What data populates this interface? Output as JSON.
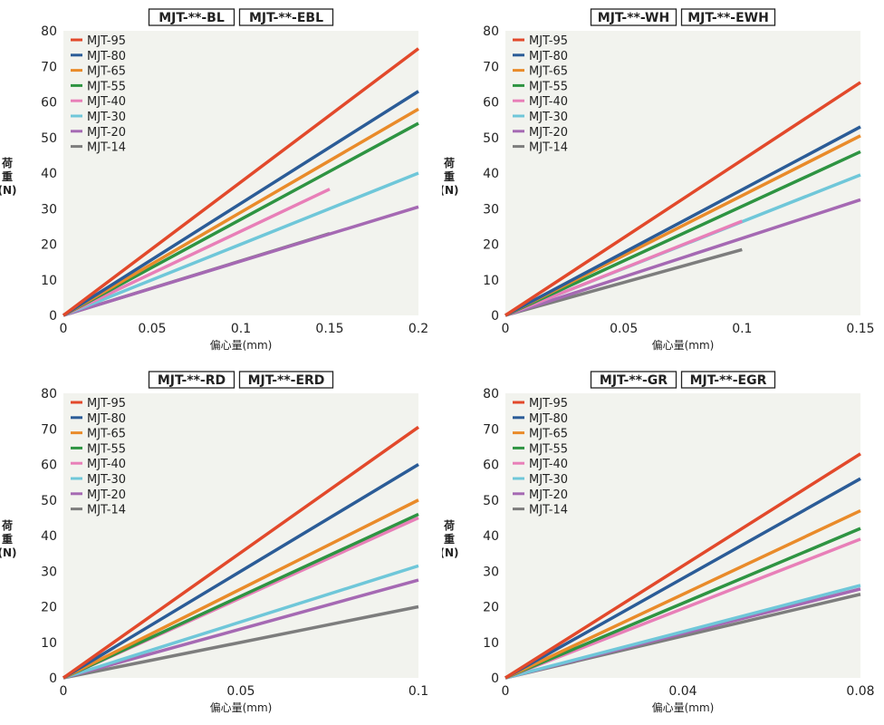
{
  "chart_data": [
    {
      "type": "line",
      "badges": [
        "MJT-**-BL",
        "MJT-**-EBL"
      ],
      "xlabel": "偏心量(mm)",
      "ylabel": [
        "荷",
        "重",
        "(N)"
      ],
      "xlim": [
        0,
        0.2
      ],
      "ylim": [
        0,
        80
      ],
      "xticks": [
        "0",
        "0.05",
        "0.1",
        "0.15",
        "0.2"
      ],
      "yticks": [
        "0",
        "10",
        "20",
        "30",
        "40",
        "50",
        "60",
        "70",
        "80"
      ],
      "series": [
        {
          "name": "MJT-95",
          "color": "#e2492b",
          "x": [
            0,
            0.2
          ],
          "y": [
            0,
            75
          ]
        },
        {
          "name": "MJT-80",
          "color": "#2b5c97",
          "x": [
            0,
            0.2
          ],
          "y": [
            0,
            63
          ]
        },
        {
          "name": "MJT-65",
          "color": "#e98b2a",
          "x": [
            0,
            0.2
          ],
          "y": [
            0,
            58
          ]
        },
        {
          "name": "MJT-55",
          "color": "#2e9442",
          "x": [
            0,
            0.2
          ],
          "y": [
            0,
            54
          ]
        },
        {
          "name": "MJT-40",
          "color": "#e87fb8",
          "x": [
            0,
            0.15
          ],
          "y": [
            0,
            35.5
          ]
        },
        {
          "name": "MJT-30",
          "color": "#6fc7d9",
          "x": [
            0,
            0.2
          ],
          "y": [
            0,
            40
          ]
        },
        {
          "name": "MJT-20",
          "color": "#a569b3",
          "x": [
            0,
            0.2
          ],
          "y": [
            0,
            30.5
          ]
        },
        {
          "name": "MJT-14",
          "color": "#7d7d7d",
          "x": [
            0,
            0.15
          ],
          "y": [
            0,
            23
          ]
        }
      ]
    },
    {
      "type": "line",
      "badges": [
        "MJT-**-WH",
        "MJT-**-EWH"
      ],
      "xlabel": "偏心量(mm)",
      "ylabel": [
        "荷",
        "重",
        "(N)"
      ],
      "xlim": [
        0,
        0.15
      ],
      "ylim": [
        0,
        80
      ],
      "xticks": [
        "0",
        "0.05",
        "0.1",
        "0.15"
      ],
      "yticks": [
        "0",
        "10",
        "20",
        "30",
        "40",
        "50",
        "60",
        "70",
        "80"
      ],
      "series": [
        {
          "name": "MJT-95",
          "color": "#e2492b",
          "x": [
            0,
            0.15
          ],
          "y": [
            0,
            65.5
          ]
        },
        {
          "name": "MJT-80",
          "color": "#2b5c97",
          "x": [
            0,
            0.15
          ],
          "y": [
            0,
            53
          ]
        },
        {
          "name": "MJT-65",
          "color": "#e98b2a",
          "x": [
            0,
            0.15
          ],
          "y": [
            0,
            50.5
          ]
        },
        {
          "name": "MJT-55",
          "color": "#2e9442",
          "x": [
            0,
            0.15
          ],
          "y": [
            0,
            46
          ]
        },
        {
          "name": "MJT-40",
          "color": "#e87fb8",
          "x": [
            0,
            0.1
          ],
          "y": [
            0,
            26.5
          ]
        },
        {
          "name": "MJT-30",
          "color": "#6fc7d9",
          "x": [
            0,
            0.15
          ],
          "y": [
            0,
            39.5
          ]
        },
        {
          "name": "MJT-20",
          "color": "#a569b3",
          "x": [
            0,
            0.15
          ],
          "y": [
            0,
            32.5
          ]
        },
        {
          "name": "MJT-14",
          "color": "#7d7d7d",
          "x": [
            0,
            0.1
          ],
          "y": [
            0,
            18.5
          ]
        }
      ]
    },
    {
      "type": "line",
      "badges": [
        "MJT-**-RD",
        "MJT-**-ERD"
      ],
      "xlabel": "偏心量(mm)",
      "ylabel": [
        "荷",
        "重",
        "(N)"
      ],
      "xlim": [
        0,
        0.1
      ],
      "ylim": [
        0,
        80
      ],
      "xticks": [
        "0",
        "0.05",
        "0.1"
      ],
      "yticks": [
        "0",
        "10",
        "20",
        "30",
        "40",
        "50",
        "60",
        "70",
        "80"
      ],
      "series": [
        {
          "name": "MJT-95",
          "color": "#e2492b",
          "x": [
            0,
            0.1
          ],
          "y": [
            0,
            70.5
          ]
        },
        {
          "name": "MJT-80",
          "color": "#2b5c97",
          "x": [
            0,
            0.1
          ],
          "y": [
            0,
            60
          ]
        },
        {
          "name": "MJT-65",
          "color": "#e98b2a",
          "x": [
            0,
            0.1
          ],
          "y": [
            0,
            50
          ]
        },
        {
          "name": "MJT-55",
          "color": "#2e9442",
          "x": [
            0,
            0.1
          ],
          "y": [
            0,
            46
          ]
        },
        {
          "name": "MJT-40",
          "color": "#e87fb8",
          "x": [
            0,
            0.1
          ],
          "y": [
            0,
            45
          ]
        },
        {
          "name": "MJT-30",
          "color": "#6fc7d9",
          "x": [
            0,
            0.1
          ],
          "y": [
            0,
            31.5
          ]
        },
        {
          "name": "MJT-20",
          "color": "#a569b3",
          "x": [
            0,
            0.1
          ],
          "y": [
            0,
            27.5
          ]
        },
        {
          "name": "MJT-14",
          "color": "#7d7d7d",
          "x": [
            0,
            0.1
          ],
          "y": [
            0,
            20
          ]
        }
      ]
    },
    {
      "type": "line",
      "badges": [
        "MJT-**-GR",
        "MJT-**-EGR"
      ],
      "xlabel": "偏心量(mm)",
      "ylabel": [
        "荷",
        "重",
        "(N)"
      ],
      "xlim": [
        0,
        0.08
      ],
      "ylim": [
        0,
        80
      ],
      "xticks": [
        "0",
        "0.04",
        "0.08"
      ],
      "yticks": [
        "0",
        "10",
        "20",
        "30",
        "40",
        "50",
        "60",
        "70",
        "80"
      ],
      "series": [
        {
          "name": "MJT-95",
          "color": "#e2492b",
          "x": [
            0,
            0.08
          ],
          "y": [
            0,
            63
          ]
        },
        {
          "name": "MJT-80",
          "color": "#2b5c97",
          "x": [
            0,
            0.08
          ],
          "y": [
            0,
            56
          ]
        },
        {
          "name": "MJT-65",
          "color": "#e98b2a",
          "x": [
            0,
            0.08
          ],
          "y": [
            0,
            47
          ]
        },
        {
          "name": "MJT-55",
          "color": "#2e9442",
          "x": [
            0,
            0.08
          ],
          "y": [
            0,
            42
          ]
        },
        {
          "name": "MJT-40",
          "color": "#e87fb8",
          "x": [
            0,
            0.08
          ],
          "y": [
            0,
            39
          ]
        },
        {
          "name": "MJT-30",
          "color": "#6fc7d9",
          "x": [
            0,
            0.08
          ],
          "y": [
            0,
            26
          ]
        },
        {
          "name": "MJT-20",
          "color": "#a569b3",
          "x": [
            0,
            0.08
          ],
          "y": [
            0,
            25
          ]
        },
        {
          "name": "MJT-14",
          "color": "#7d7d7d",
          "x": [
            0,
            0.08
          ],
          "y": [
            0,
            23.5
          ]
        }
      ]
    }
  ]
}
